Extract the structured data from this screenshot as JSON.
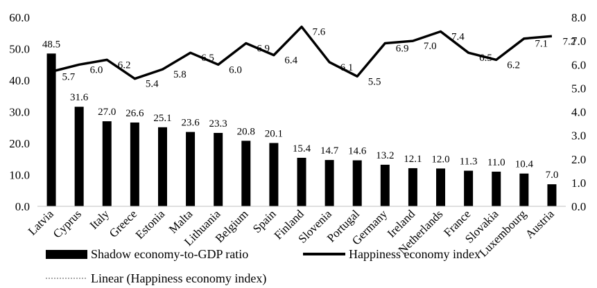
{
  "chart_data": {
    "type": "bar",
    "categories": [
      "Latvia",
      "Cyprus",
      "Italy",
      "Greece",
      "Estonia",
      "Malta",
      "Lithuania",
      "Belgium",
      "Spain",
      "Finland",
      "Slovenia",
      "Portugal",
      "Germany",
      "Ireland",
      "Netherlands",
      "France",
      "Slovakia",
      "Luxembourg",
      "Austria"
    ],
    "series": [
      {
        "name": "Shadow economy-to-GDP ratio",
        "type": "bar",
        "axis": "left",
        "color": "#000000",
        "values": [
          48.5,
          31.6,
          27.0,
          26.6,
          25.1,
          23.6,
          23.3,
          20.8,
          20.1,
          15.4,
          14.7,
          14.6,
          13.2,
          12.1,
          12.0,
          11.3,
          11.0,
          10.4,
          7.0
        ],
        "labels": [
          "48.5",
          "31.6",
          "27.0",
          "26.6",
          "25.1",
          "23.6",
          "23.3",
          "20.8",
          "20.1",
          "15.4",
          "14.7",
          "14.6",
          "13.2",
          "12.1",
          "12.0",
          "11.3",
          "11.0",
          "10.4",
          "7.0"
        ]
      },
      {
        "name": "Happiness economy index",
        "type": "line",
        "axis": "right",
        "color": "#000000",
        "values": [
          5.7,
          6.0,
          6.2,
          5.4,
          5.8,
          6.5,
          6.0,
          6.9,
          6.4,
          7.6,
          6.1,
          5.5,
          6.9,
          7.0,
          7.4,
          6.5,
          6.2,
          7.1,
          7.2
        ],
        "labels": [
          "5.7",
          "6.0",
          "6.2",
          "5.4",
          "5.8",
          "6.5",
          "6.0",
          "6.9",
          "6.4",
          "7.6",
          "6.1",
          "5.5",
          "6.9",
          "7.0",
          "7.4",
          "6.5",
          "6.2",
          "7.1",
          "7.2"
        ]
      },
      {
        "name": "Linear (Happiness economy index)",
        "type": "trendline",
        "axis": "right",
        "color": "#a6a6a6"
      }
    ],
    "y_left": {
      "ylim": [
        0,
        60
      ],
      "ticks": [
        "0.0",
        "10.0",
        "20.0",
        "30.0",
        "40.0",
        "50.0",
        "60.0"
      ]
    },
    "y_right": {
      "ylim": [
        0,
        8
      ],
      "ticks": [
        "0.0",
        "1.0",
        "2.0",
        "3.0",
        "4.0",
        "5.0",
        "6.0",
        "7.0",
        "8.0"
      ]
    },
    "grid": false,
    "legend_position": "bottom"
  }
}
